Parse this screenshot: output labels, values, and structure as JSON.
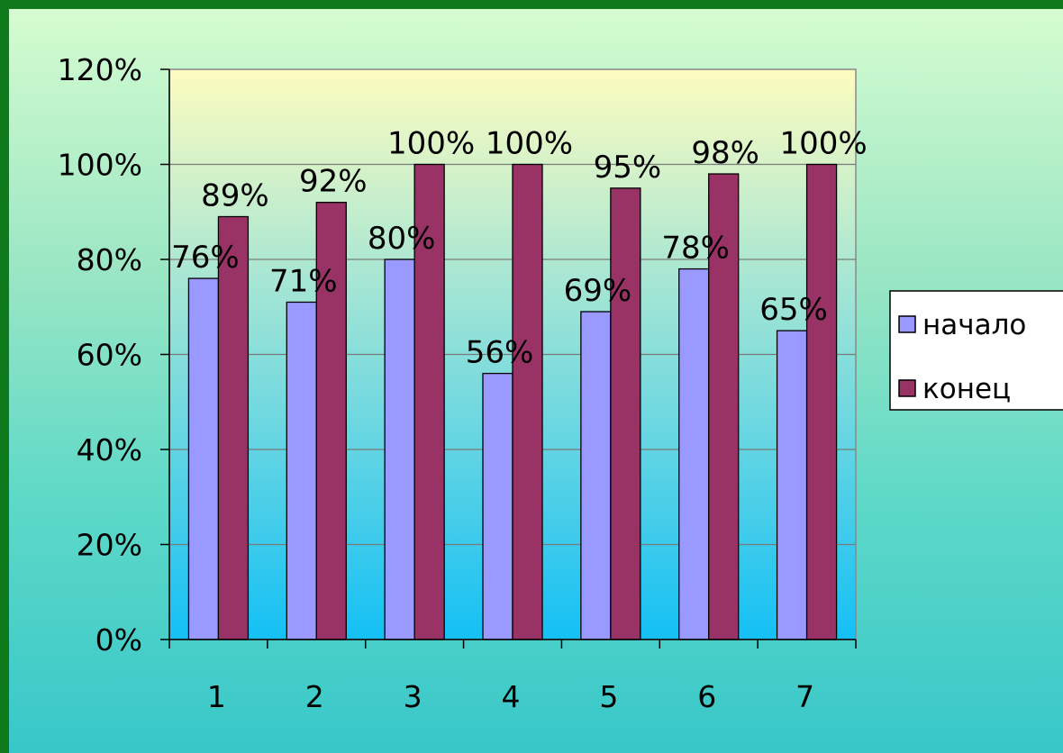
{
  "chart_data": {
    "type": "bar",
    "categories": [
      "1",
      "2",
      "3",
      "4",
      "5",
      "6",
      "7"
    ],
    "series": [
      {
        "name": "начало",
        "values": [
          76,
          71,
          80,
          56,
          69,
          78,
          65
        ],
        "color": "#9999ff"
      },
      {
        "name": "конец",
        "values": [
          89,
          92,
          100,
          100,
          95,
          98,
          100
        ],
        "color": "#993366"
      }
    ],
    "value_labels": [
      [
        "76%",
        "71%",
        "80%",
        "56%",
        "69%",
        "78%",
        "65%"
      ],
      [
        "89%",
        "92%",
        "100%",
        "100%",
        "95%",
        "98%",
        "100%"
      ]
    ],
    "ylim": [
      0,
      120
    ],
    "y_ticks": [
      0,
      20,
      40,
      60,
      80,
      100,
      120
    ],
    "y_tick_labels": [
      "0%",
      "20%",
      "40%",
      "60%",
      "80%",
      "100%",
      "120%"
    ],
    "grid": true,
    "legend_position": "right",
    "plot_area_gradient": [
      "#fdfcc0",
      "#14c0f5"
    ]
  }
}
